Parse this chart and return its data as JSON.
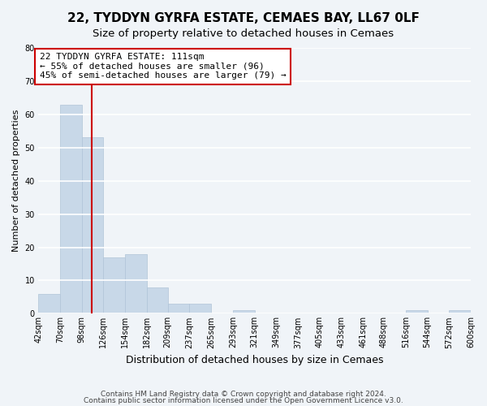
{
  "title": "22, TYDDYN GYRFA ESTATE, CEMAES BAY, LL67 0LF",
  "subtitle": "Size of property relative to detached houses in Cemaes",
  "xlabel": "Distribution of detached houses by size in Cemaes",
  "ylabel": "Number of detached properties",
  "bar_color": "#c8d8e8",
  "bar_edge_color": "#b0c4d8",
  "bin_edges": [
    42,
    70,
    98,
    126,
    154,
    182,
    209,
    237,
    265,
    293,
    321,
    349,
    377,
    405,
    433,
    461,
    488,
    516,
    544,
    572,
    600
  ],
  "bar_heights": [
    6,
    63,
    53,
    17,
    18,
    8,
    3,
    3,
    0,
    1,
    0,
    0,
    0,
    0,
    0,
    0,
    0,
    1,
    0,
    1
  ],
  "xtick_labels": [
    "42sqm",
    "70sqm",
    "98sqm",
    "126sqm",
    "154sqm",
    "182sqm",
    "209sqm",
    "237sqm",
    "265sqm",
    "293sqm",
    "321sqm",
    "349sqm",
    "377sqm",
    "405sqm",
    "433sqm",
    "461sqm",
    "488sqm",
    "516sqm",
    "544sqm",
    "572sqm",
    "600sqm"
  ],
  "ylim": [
    0,
    80
  ],
  "yticks": [
    0,
    10,
    20,
    30,
    40,
    50,
    60,
    70,
    80
  ],
  "property_line_x": 111,
  "property_line_color": "#cc0000",
  "annotation_text": "22 TYDDYN GYRFA ESTATE: 111sqm\n← 55% of detached houses are smaller (96)\n45% of semi-detached houses are larger (79) →",
  "footer_line1": "Contains HM Land Registry data © Crown copyright and database right 2024.",
  "footer_line2": "Contains public sector information licensed under the Open Government Licence v3.0.",
  "background_color": "#f0f4f8",
  "grid_color": "#ffffff",
  "title_fontsize": 11,
  "subtitle_fontsize": 9.5,
  "annotation_fontsize": 8,
  "tick_fontsize": 7,
  "ylabel_fontsize": 8,
  "xlabel_fontsize": 9
}
